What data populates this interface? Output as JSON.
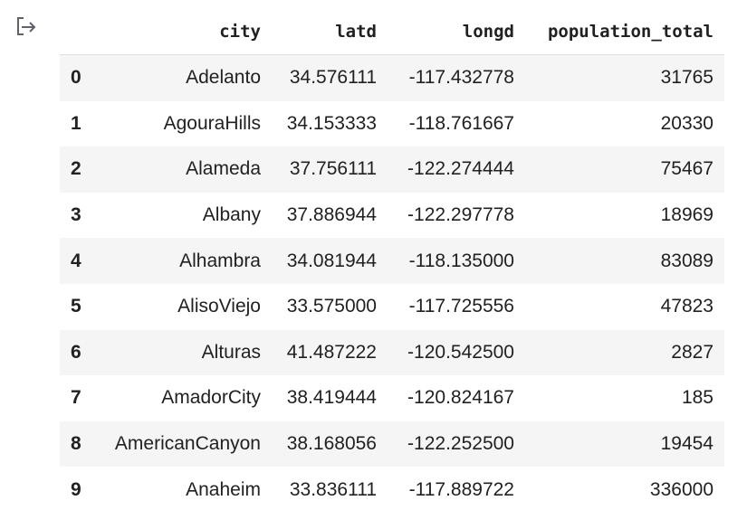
{
  "output": {
    "icon": "output-arrow-icon"
  },
  "table": {
    "columns": [
      "city",
      "latd",
      "longd",
      "population_total"
    ],
    "rows": [
      {
        "index": "0",
        "city": "Adelanto",
        "latd": "34.576111",
        "longd": "-117.432778",
        "population_total": "31765"
      },
      {
        "index": "1",
        "city": "AgouraHills",
        "latd": "34.153333",
        "longd": "-118.761667",
        "population_total": "20330"
      },
      {
        "index": "2",
        "city": "Alameda",
        "latd": "37.756111",
        "longd": "-122.274444",
        "population_total": "75467"
      },
      {
        "index": "3",
        "city": "Albany",
        "latd": "37.886944",
        "longd": "-122.297778",
        "population_total": "18969"
      },
      {
        "index": "4",
        "city": "Alhambra",
        "latd": "34.081944",
        "longd": "-118.135000",
        "population_total": "83089"
      },
      {
        "index": "5",
        "city": "AlisoViejo",
        "latd": "33.575000",
        "longd": "-117.725556",
        "population_total": "47823"
      },
      {
        "index": "6",
        "city": "Alturas",
        "latd": "41.487222",
        "longd": "-120.542500",
        "population_total": "2827"
      },
      {
        "index": "7",
        "city": "AmadorCity",
        "latd": "38.419444",
        "longd": "-120.824167",
        "population_total": "185"
      },
      {
        "index": "8",
        "city": "AmericanCanyon",
        "latd": "38.168056",
        "longd": "-122.252500",
        "population_total": "19454"
      },
      {
        "index": "9",
        "city": "Anaheim",
        "latd": "33.836111",
        "longd": "-117.889722",
        "population_total": "336000"
      }
    ]
  }
}
